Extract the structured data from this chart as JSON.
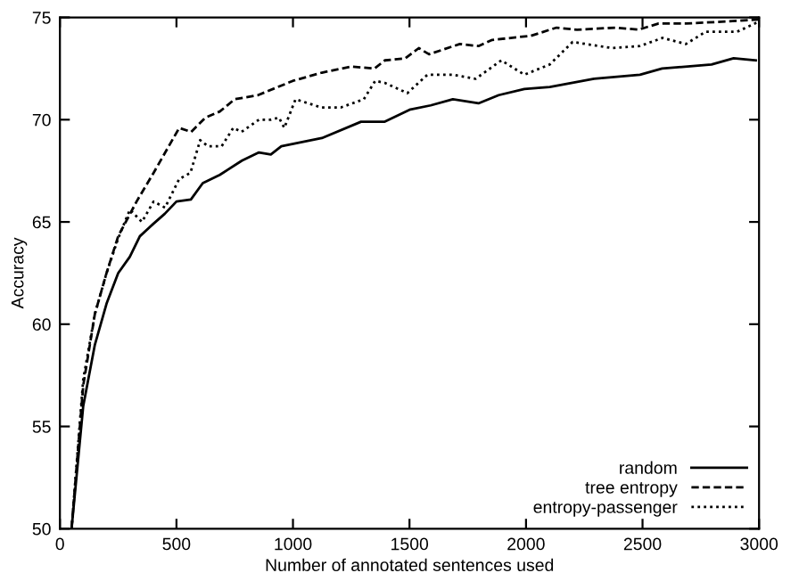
{
  "chart_data": {
    "type": "line",
    "xlabel": "Number of annotated sentences used",
    "ylabel": "Accuracy",
    "xlim": [
      0,
      3000
    ],
    "ylim": [
      50,
      75
    ],
    "xticks": [
      0,
      500,
      1000,
      1500,
      2000,
      2500,
      3000
    ],
    "yticks": [
      50,
      55,
      60,
      65,
      70,
      75
    ],
    "grid": false,
    "legend": "bottom right",
    "marker": "none",
    "series": [
      {
        "name": "random",
        "color": "#000000",
        "line_style": "solid",
        "x": [
          50,
          100,
          150,
          200,
          250,
          300,
          343,
          400,
          450,
          500,
          562,
          613,
          686,
          781,
          854,
          905,
          950,
          1124,
          1292,
          1394,
          1504,
          1591,
          1686,
          1796,
          1883,
          1993,
          2102,
          2292,
          2489,
          2584,
          2796,
          2891,
          2986
        ],
        "values": [
          50,
          56.0,
          59.0,
          61.0,
          62.5,
          63.3,
          64.3,
          64.9,
          65.4,
          66.0,
          66.1,
          66.9,
          67.3,
          68.0,
          68.4,
          68.3,
          68.7,
          69.1,
          69.9,
          69.9,
          70.5,
          70.7,
          71.0,
          70.8,
          71.2,
          71.5,
          71.6,
          72.0,
          72.2,
          72.5,
          72.7,
          73.0,
          72.9
        ]
      },
      {
        "name": "tree entropy",
        "color": "#000000",
        "line_style": "dashed",
        "x": [
          50,
          100,
          150,
          200,
          250,
          329,
          402,
          512,
          563,
          624,
          686,
          750,
          850,
          1000,
          1124,
          1250,
          1350,
          1394,
          1482,
          1540,
          1584,
          1716,
          1796,
          1855,
          2020,
          2131,
          2219,
          2384,
          2482,
          2569,
          2687,
          2855,
          3000
        ],
        "values": [
          50,
          57.0,
          60.5,
          62.5,
          64.3,
          66.0,
          67.4,
          69.6,
          69.4,
          70.1,
          70.4,
          71.0,
          71.2,
          71.9,
          72.3,
          72.6,
          72.5,
          72.9,
          73.0,
          73.5,
          73.2,
          73.7,
          73.6,
          73.9,
          74.1,
          74.5,
          74.4,
          74.5,
          74.4,
          74.7,
          74.7,
          74.8,
          74.9
        ]
      },
      {
        "name": "entropy-passenger",
        "color": "#000000",
        "line_style": "dotted",
        "x": [
          50,
          100,
          150,
          200,
          250,
          300,
          352,
          402,
          451,
          512,
          560,
          602,
          635,
          694,
          744,
          779,
          854,
          905,
          940,
          963,
          1011,
          1121,
          1206,
          1304,
          1353,
          1394,
          1491,
          1577,
          1686,
          1784,
          1894,
          1993,
          2102,
          2200,
          2370,
          2489,
          2586,
          2686,
          2771,
          2906,
          3000
        ],
        "values": [
          50,
          57.3,
          60.5,
          62.5,
          64.2,
          65.6,
          65.0,
          66.0,
          65.7,
          67.1,
          67.4,
          69.0,
          68.7,
          68.7,
          69.6,
          69.4,
          70.0,
          70.0,
          70.1,
          69.6,
          71.0,
          70.6,
          70.6,
          71.0,
          71.9,
          71.8,
          71.3,
          72.2,
          72.2,
          72.0,
          72.9,
          72.2,
          72.7,
          73.8,
          73.5,
          73.6,
          74.0,
          73.7,
          74.3,
          74.3,
          74.8
        ]
      }
    ]
  }
}
